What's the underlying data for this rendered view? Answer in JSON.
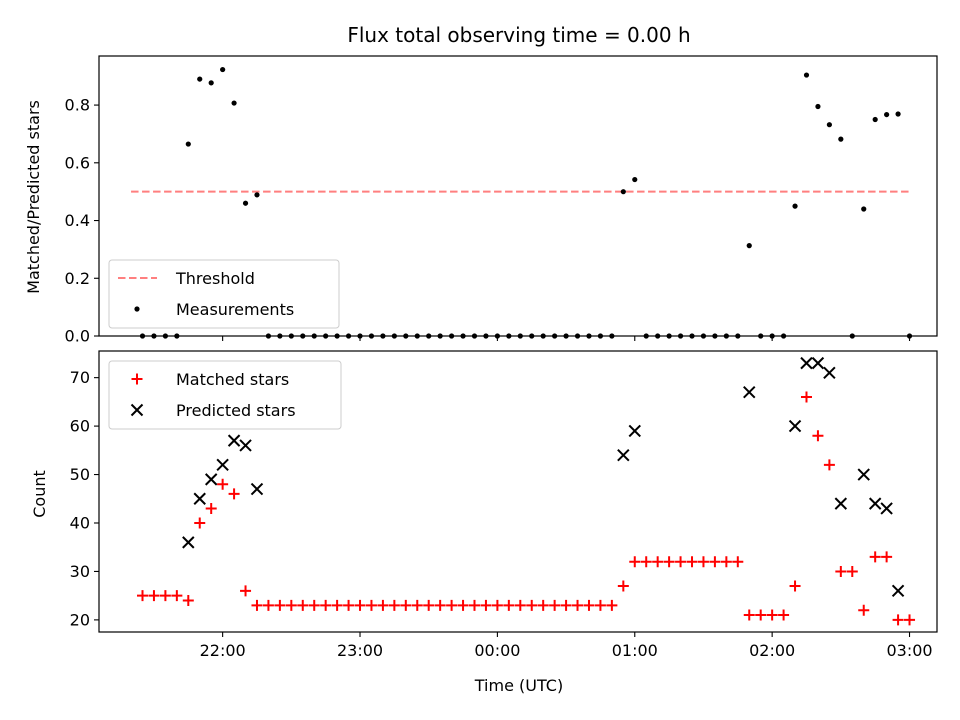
{
  "chart_data": [
    {
      "type": "scatter",
      "title": "Flux total observing time = 0.00 h",
      "xlabel": "",
      "ylabel": "Matched/Predicted stars",
      "ylim": [
        0,
        0.97
      ],
      "yticks": [
        "0.0",
        "0.2",
        "0.4",
        "0.6",
        "0.8"
      ],
      "ytick_values": [
        0,
        0.2,
        0.4,
        0.6,
        0.8
      ],
      "legend": {
        "position": "lower-left",
        "entries": [
          "Threshold",
          "Measurements"
        ]
      },
      "threshold": {
        "name": "Threshold",
        "value": 0.5,
        "x_start": -2.6667,
        "x_end": 3.0,
        "color": "#ff7f7f"
      },
      "series": [
        {
          "name": "Measurements",
          "marker": "dot",
          "color": "#000000",
          "points": [
            [
              -2.5833,
              0.0
            ],
            [
              -2.5,
              0.0
            ],
            [
              -2.4167,
              0.0
            ],
            [
              -2.3333,
              0.0
            ],
            [
              -2.25,
              0.665
            ],
            [
              -2.1667,
              0.89
            ],
            [
              -2.0833,
              0.877
            ],
            [
              -2.0,
              0.923
            ],
            [
              -1.9167,
              0.807
            ],
            [
              -1.8333,
              0.46
            ],
            [
              -1.75,
              0.489
            ],
            [
              -1.6667,
              0.0
            ],
            [
              -1.5833,
              0.0
            ],
            [
              -1.5,
              0.0
            ],
            [
              -1.4167,
              0.0
            ],
            [
              -1.3333,
              0.0
            ],
            [
              -1.25,
              0.0
            ],
            [
              -1.1667,
              0.0
            ],
            [
              -1.0833,
              0.0
            ],
            [
              -1.0,
              0.0
            ],
            [
              -0.9167,
              0.0
            ],
            [
              -0.8333,
              0.0
            ],
            [
              -0.75,
              0.0
            ],
            [
              -0.6667,
              0.0
            ],
            [
              -0.5833,
              0.0
            ],
            [
              -0.5,
              0.0
            ],
            [
              -0.4167,
              0.0
            ],
            [
              -0.3333,
              0.0
            ],
            [
              -0.25,
              0.0
            ],
            [
              -0.1667,
              0.0
            ],
            [
              -0.0833,
              0.0
            ],
            [
              0.0,
              0.0
            ],
            [
              0.0833,
              0.0
            ],
            [
              0.1667,
              0.0
            ],
            [
              0.25,
              0.0
            ],
            [
              0.3333,
              0.0
            ],
            [
              0.4167,
              0.0
            ],
            [
              0.5,
              0.0
            ],
            [
              0.5833,
              0.0
            ],
            [
              0.6667,
              0.0
            ],
            [
              0.75,
              0.0
            ],
            [
              0.8333,
              0.0
            ],
            [
              0.9167,
              0.5
            ],
            [
              1.0,
              0.542
            ],
            [
              1.0833,
              0.0
            ],
            [
              1.1667,
              0.0
            ],
            [
              1.25,
              0.0
            ],
            [
              1.3333,
              0.0
            ],
            [
              1.4167,
              0.0
            ],
            [
              1.5,
              0.0
            ],
            [
              1.5833,
              0.0
            ],
            [
              1.6667,
              0.0
            ],
            [
              1.75,
              0.0
            ],
            [
              1.8333,
              0.313
            ],
            [
              1.9167,
              0.0
            ],
            [
              2.0,
              0.0
            ],
            [
              2.0833,
              0.0
            ],
            [
              2.1667,
              0.45
            ],
            [
              2.25,
              0.904
            ],
            [
              2.3333,
              0.795
            ],
            [
              2.4167,
              0.732
            ],
            [
              2.5,
              0.682
            ],
            [
              2.5833,
              0.0
            ],
            [
              2.6667,
              0.44
            ],
            [
              2.75,
              0.75
            ],
            [
              2.8333,
              0.767
            ],
            [
              2.9167,
              0.769
            ],
            [
              3.0,
              0.0
            ]
          ]
        }
      ]
    },
    {
      "type": "scatter",
      "title": "",
      "xlabel": "Time (UTC)",
      "ylabel": "Count",
      "ylim": [
        17.5,
        75.5
      ],
      "yticks": [
        "20",
        "30",
        "40",
        "50",
        "60",
        "70"
      ],
      "ytick_values": [
        20,
        30,
        40,
        50,
        60,
        70
      ],
      "xticks": [
        "22:00",
        "23:00",
        "00:00",
        "01:00",
        "02:00",
        "03:00"
      ],
      "xtick_values": [
        -2,
        -1,
        0,
        1,
        2,
        3
      ],
      "x_units": "hours from 00:00 UTC",
      "xlim": [
        -2.9,
        3.2
      ],
      "legend": {
        "position": "upper-left",
        "entries": [
          "Matched stars",
          "Predicted stars"
        ]
      },
      "series": [
        {
          "name": "Matched stars",
          "marker": "plus",
          "color": "#ff0000",
          "points": [
            [
              -2.5833,
              25
            ],
            [
              -2.5,
              25
            ],
            [
              -2.4167,
              25
            ],
            [
              -2.3333,
              25
            ],
            [
              -2.25,
              24
            ],
            [
              -2.1667,
              40
            ],
            [
              -2.0833,
              43
            ],
            [
              -2.0,
              48
            ],
            [
              -1.9167,
              46
            ],
            [
              -1.8333,
              26
            ],
            [
              -1.75,
              23
            ],
            [
              -1.6667,
              23
            ],
            [
              -1.5833,
              23
            ],
            [
              -1.5,
              23
            ],
            [
              -1.4167,
              23
            ],
            [
              -1.3333,
              23
            ],
            [
              -1.25,
              23
            ],
            [
              -1.1667,
              23
            ],
            [
              -1.0833,
              23
            ],
            [
              -1.0,
              23
            ],
            [
              -0.9167,
              23
            ],
            [
              -0.8333,
              23
            ],
            [
              -0.75,
              23
            ],
            [
              -0.6667,
              23
            ],
            [
              -0.5833,
              23
            ],
            [
              -0.5,
              23
            ],
            [
              -0.4167,
              23
            ],
            [
              -0.3333,
              23
            ],
            [
              -0.25,
              23
            ],
            [
              -0.1667,
              23
            ],
            [
              -0.0833,
              23
            ],
            [
              0.0,
              23
            ],
            [
              0.0833,
              23
            ],
            [
              0.1667,
              23
            ],
            [
              0.25,
              23
            ],
            [
              0.3333,
              23
            ],
            [
              0.4167,
              23
            ],
            [
              0.5,
              23
            ],
            [
              0.5833,
              23
            ],
            [
              0.6667,
              23
            ],
            [
              0.75,
              23
            ],
            [
              0.8333,
              23
            ],
            [
              0.9167,
              27
            ],
            [
              1.0,
              32
            ],
            [
              1.0833,
              32
            ],
            [
              1.1667,
              32
            ],
            [
              1.25,
              32
            ],
            [
              1.3333,
              32
            ],
            [
              1.4167,
              32
            ],
            [
              1.5,
              32
            ],
            [
              1.5833,
              32
            ],
            [
              1.6667,
              32
            ],
            [
              1.75,
              32
            ],
            [
              1.8333,
              21
            ],
            [
              1.9167,
              21
            ],
            [
              2.0,
              21
            ],
            [
              2.0833,
              21
            ],
            [
              2.1667,
              27
            ],
            [
              2.25,
              66
            ],
            [
              2.3333,
              58
            ],
            [
              2.4167,
              52
            ],
            [
              2.5,
              30
            ],
            [
              2.5833,
              30
            ],
            [
              2.6667,
              22
            ],
            [
              2.75,
              33
            ],
            [
              2.8333,
              33
            ],
            [
              2.9167,
              20
            ],
            [
              3.0,
              20
            ]
          ]
        },
        {
          "name": "Predicted stars",
          "marker": "x",
          "color": "#000000",
          "points": [
            [
              -2.25,
              36
            ],
            [
              -2.1667,
              45
            ],
            [
              -2.0833,
              49
            ],
            [
              -2.0,
              52
            ],
            [
              -1.9167,
              57
            ],
            [
              -1.8333,
              56
            ],
            [
              -1.75,
              47
            ],
            [
              0.9167,
              54
            ],
            [
              1.0,
              59
            ],
            [
              1.8333,
              67
            ],
            [
              2.1667,
              60
            ],
            [
              2.25,
              73
            ],
            [
              2.3333,
              73
            ],
            [
              2.4167,
              71
            ],
            [
              2.5,
              44
            ],
            [
              2.6667,
              50
            ],
            [
              2.75,
              44
            ],
            [
              2.8333,
              43
            ],
            [
              2.9167,
              26
            ]
          ]
        }
      ]
    }
  ]
}
